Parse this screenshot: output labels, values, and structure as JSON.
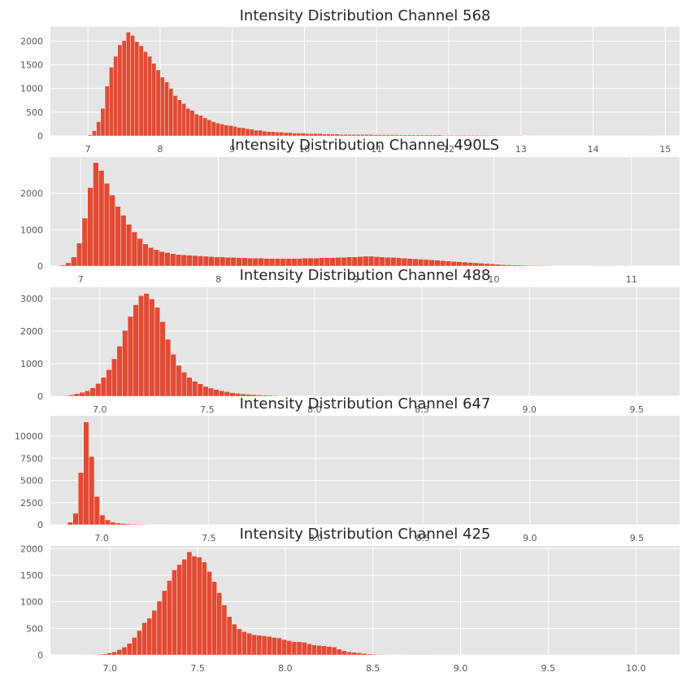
{
  "colors": {
    "axes_bg": "#E5E5E5",
    "grid": "#FFFFFF",
    "bar": "#E24A33",
    "bar_edge": "#FFFFFF"
  },
  "chart_data": [
    {
      "type": "bar",
      "title": "Intensity Distribution Channel 568",
      "xlim": [
        6.48,
        15.2
      ],
      "ylim": [
        0,
        2300
      ],
      "xticks": [
        7,
        8,
        9,
        10,
        11,
        12,
        13,
        14,
        15
      ],
      "yticks": [
        0,
        500,
        1000,
        1500,
        2000
      ],
      "grid": true,
      "bins": {
        "start": 7.0,
        "width": 0.059
      },
      "values": [
        20,
        110,
        300,
        580,
        1050,
        1450,
        1680,
        1920,
        2010,
        2190,
        2120,
        1990,
        1900,
        1780,
        1680,
        1530,
        1390,
        1240,
        1140,
        1000,
        850,
        760,
        680,
        580,
        540,
        460,
        430,
        380,
        340,
        300,
        270,
        250,
        230,
        220,
        200,
        180,
        170,
        150,
        140,
        120,
        120,
        100,
        90,
        90,
        80,
        80,
        70,
        70,
        60,
        60,
        60,
        50,
        50,
        50,
        50,
        40,
        40,
        40,
        40,
        30,
        30,
        30,
        30,
        30,
        30,
        30,
        30,
        25,
        25,
        25,
        25,
        25,
        25,
        20,
        20,
        20,
        20,
        20,
        20,
        20,
        20,
        20,
        20,
        15,
        15,
        15,
        15,
        15,
        15,
        15,
        15,
        15,
        12,
        12,
        12,
        12,
        10,
        10,
        10,
        10,
        10,
        10,
        8,
        8,
        8,
        8,
        6,
        6,
        6,
        6,
        5,
        5,
        5,
        5,
        4,
        4,
        4,
        4,
        3,
        3,
        3,
        3,
        3,
        2,
        2,
        2,
        2,
        2,
        2,
        2,
        2,
        2,
        2
      ]
    },
    {
      "type": "bar",
      "title": "Intensity Distribution Channel 490LS",
      "xlim": [
        6.78,
        11.35
      ],
      "ylim": [
        0,
        3000
      ],
      "xticks": [
        7,
        8,
        9,
        10,
        11
      ],
      "yticks": [
        0,
        1000,
        2000
      ],
      "grid": true,
      "bins": {
        "start": 6.85,
        "width": 0.04
      },
      "values": [
        30,
        90,
        250,
        630,
        1320,
        2160,
        2850,
        2630,
        2280,
        1950,
        1640,
        1400,
        1150,
        940,
        760,
        610,
        510,
        450,
        400,
        370,
        340,
        320,
        310,
        300,
        290,
        280,
        270,
        260,
        250,
        250,
        240,
        240,
        230,
        230,
        220,
        220,
        220,
        210,
        210,
        210,
        210,
        210,
        210,
        210,
        220,
        220,
        220,
        230,
        230,
        230,
        240,
        240,
        250,
        250,
        260,
        270,
        270,
        260,
        250,
        240,
        240,
        230,
        220,
        210,
        200,
        190,
        180,
        170,
        160,
        150,
        140,
        130,
        120,
        110,
        100,
        90,
        80,
        70,
        60,
        50,
        40,
        35,
        30,
        25,
        20,
        18,
        16,
        14,
        12,
        10,
        8,
        8,
        6,
        6,
        5,
        5,
        4,
        4,
        3,
        3,
        3,
        2,
        2,
        2,
        2,
        2
      ]
    },
    {
      "type": "bar",
      "title": "Intensity Distribution Channel 488",
      "xlim": [
        6.77,
        9.7
      ],
      "ylim": [
        0,
        3350
      ],
      "xticks": [
        7.0,
        7.5,
        8.0,
        8.5,
        9.0,
        9.5
      ],
      "xtick_labels": [
        "7.0",
        "7.5",
        "8.0",
        "8.5",
        "9.0",
        "9.5"
      ],
      "yticks": [
        0,
        1000,
        2000,
        3000
      ],
      "grid": true,
      "bins": {
        "start": 6.83,
        "width": 0.025
      },
      "values": [
        20,
        40,
        80,
        120,
        170,
        260,
        390,
        580,
        820,
        1150,
        1540,
        2020,
        2450,
        2810,
        3090,
        3160,
        2990,
        2730,
        2290,
        1750,
        1290,
        950,
        740,
        580,
        460,
        380,
        300,
        250,
        210,
        170,
        140,
        110,
        90,
        70,
        60,
        50,
        40,
        30,
        25,
        20,
        15,
        12,
        10,
        8,
        6,
        5,
        4,
        3,
        3,
        2,
        2,
        2,
        1,
        1,
        1,
        1,
        1,
        1,
        1,
        1
      ]
    },
    {
      "type": "bar",
      "title": "Intensity Distribution Channel 647",
      "xlim": [
        6.76,
        9.7
      ],
      "ylim": [
        0,
        12300
      ],
      "xticks": [
        7.0,
        7.5,
        8.0,
        8.5,
        9.0,
        9.5
      ],
      "xtick_labels": [
        "7.0",
        "7.5",
        "8.0",
        "8.5",
        "9.0",
        "9.5"
      ],
      "yticks": [
        0,
        2500,
        5000,
        7500,
        10000
      ],
      "grid": true,
      "bins": {
        "start": 6.84,
        "width": 0.025
      },
      "values": [
        300,
        1300,
        5900,
        11600,
        7700,
        3200,
        1100,
        550,
        300,
        200,
        140,
        100,
        80,
        60,
        50,
        40,
        30,
        25,
        20,
        15,
        12,
        10,
        8,
        6,
        5,
        4,
        3,
        2,
        2,
        2
      ]
    },
    {
      "type": "bar",
      "title": "Intensity Distribution Channel 425",
      "xlim": [
        6.66,
        10.25
      ],
      "ylim": [
        0,
        2050
      ],
      "xticks": [
        7.0,
        7.5,
        8.0,
        8.5,
        9.0,
        9.5,
        10.0
      ],
      "xtick_labels": [
        "7.0",
        "7.5",
        "8.0",
        "8.5",
        "9.0",
        "9.5",
        "10.0"
      ],
      "yticks": [
        0,
        500,
        1000,
        1500,
        2000
      ],
      "grid": true,
      "bins": {
        "start": 6.84,
        "width": 0.0285
      },
      "values": [
        2,
        4,
        8,
        12,
        20,
        40,
        60,
        100,
        150,
        220,
        330,
        460,
        610,
        690,
        840,
        1010,
        1210,
        1400,
        1600,
        1700,
        1800,
        1940,
        1860,
        1840,
        1750,
        1570,
        1380,
        1170,
        940,
        720,
        580,
        490,
        440,
        410,
        380,
        370,
        360,
        350,
        330,
        320,
        290,
        270,
        250,
        250,
        240,
        210,
        190,
        180,
        170,
        160,
        150,
        110,
        80,
        60,
        50,
        40,
        30,
        20,
        15,
        10,
        8,
        6,
        5,
        4,
        3,
        3,
        2,
        2,
        2,
        2,
        1,
        1,
        1,
        1,
        1,
        1,
        1,
        1,
        1,
        1,
        1,
        1,
        1,
        1,
        1,
        1,
        1,
        1,
        1,
        1,
        1,
        1,
        1,
        1,
        1,
        1,
        1,
        1,
        1,
        1,
        1,
        1,
        1,
        1,
        1,
        1,
        1,
        1,
        1,
        1
      ]
    }
  ]
}
